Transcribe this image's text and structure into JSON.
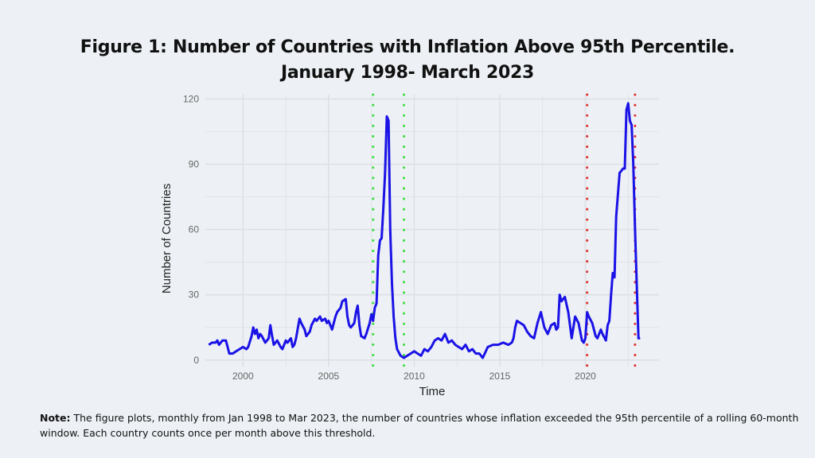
{
  "title_line1": "Figure 1: Number of Countries with Inflation Above 95th Percentile.",
  "title_line2": "January 1998- March 2023",
  "note_label": "Note:",
  "note_text": " The figure plots, monthly from Jan 1998 to Mar 2023, the number of countries whose inflation exceeded the 95th percentile of a rolling 60-month window. Each country counts once per month above this threshold.",
  "colors": {
    "background": "#edf1f5",
    "line": "#1a12e6",
    "gfc_markers": "#3ddc3d",
    "covid_markers": "#e03030",
    "grid": "#dde1e6"
  },
  "chart_data": {
    "type": "line",
    "title": "Figure 1: Number of Countries with Inflation Above 95th Percentile. January 1998- March 2023",
    "xlabel": "Time",
    "ylabel": "Number of Countries",
    "xlim": [
      1997.8,
      2024.3
    ],
    "ylim": [
      -3,
      122
    ],
    "x_ticks": [
      2000,
      2005,
      2010,
      2015,
      2020
    ],
    "x_tick_labels": [
      "2000",
      "2005",
      "2010",
      "2015",
      "2020"
    ],
    "y_ticks": [
      0,
      30,
      60,
      90,
      120
    ],
    "y_tick_labels": [
      "0",
      "30",
      "60",
      "90",
      "120"
    ],
    "grid": true,
    "legend": "none",
    "vlines": [
      {
        "x": 2007.6,
        "color": "green",
        "style": "dotted"
      },
      {
        "x": 2009.4,
        "color": "green",
        "style": "dotted"
      },
      {
        "x": 2020.1,
        "color": "red",
        "style": "dotted"
      },
      {
        "x": 2022.9,
        "color": "red",
        "style": "dotted"
      }
    ],
    "series": [
      {
        "name": "Number of Countries",
        "x": [
          1998.0,
          1998.2,
          1998.4,
          1998.5,
          1998.6,
          1998.8,
          1999.0,
          1999.1,
          1999.2,
          1999.4,
          1999.6,
          1999.8,
          2000.0,
          2000.2,
          2000.3,
          2000.5,
          2000.6,
          2000.7,
          2000.8,
          2000.9,
          2001.0,
          2001.1,
          2001.3,
          2001.5,
          2001.6,
          2001.7,
          2001.8,
          2002.0,
          2002.2,
          2002.3,
          2002.5,
          2002.6,
          2002.8,
          2002.9,
          2003.0,
          2003.1,
          2003.3,
          2003.4,
          2003.6,
          2003.7,
          2003.9,
          2004.0,
          2004.2,
          2004.3,
          2004.5,
          2004.6,
          2004.8,
          2004.9,
          2005.0,
          2005.2,
          2005.4,
          2005.5,
          2005.7,
          2005.8,
          2006.0,
          2006.1,
          2006.2,
          2006.3,
          2006.5,
          2006.6,
          2006.7,
          2006.8,
          2006.9,
          2007.1,
          2007.2,
          2007.4,
          2007.5,
          2007.6,
          2007.7,
          2007.8,
          2007.9,
          2008.0,
          2008.1,
          2008.2,
          2008.3,
          2008.4,
          2008.5,
          2008.6,
          2008.7,
          2008.8,
          2008.9,
          2009.0,
          2009.2,
          2009.4,
          2009.6,
          2009.8,
          2010.0,
          2010.2,
          2010.4,
          2010.6,
          2010.8,
          2011.0,
          2011.2,
          2011.4,
          2011.6,
          2011.8,
          2012.0,
          2012.2,
          2012.4,
          2012.6,
          2012.8,
          2013.0,
          2013.2,
          2013.4,
          2013.6,
          2013.8,
          2014.0,
          2014.3,
          2014.6,
          2014.9,
          2015.2,
          2015.5,
          2015.7,
          2015.8,
          2015.9,
          2016.0,
          2016.2,
          2016.4,
          2016.6,
          2016.8,
          2017.0,
          2017.2,
          2017.4,
          2017.6,
          2017.8,
          2018.0,
          2018.2,
          2018.3,
          2018.4,
          2018.5,
          2018.6,
          2018.8,
          2019.0,
          2019.2,
          2019.4,
          2019.6,
          2019.8,
          2019.9,
          2020.0,
          2020.1,
          2020.2,
          2020.4,
          2020.6,
          2020.7,
          2020.9,
          2021.0,
          2021.2,
          2021.3,
          2021.4,
          2021.5,
          2021.6,
          2021.7,
          2021.8,
          2022.0,
          2022.1,
          2022.2,
          2022.3,
          2022.4,
          2022.5,
          2022.6,
          2022.7,
          2022.8,
          2022.9,
          2023.0,
          2023.1,
          2023.2
        ],
        "y": [
          7,
          8,
          8,
          9,
          7,
          9,
          9,
          6,
          3,
          3,
          4,
          5,
          6,
          5,
          6,
          11,
          15,
          12,
          14,
          10,
          12,
          11,
          8,
          10,
          16,
          11,
          7,
          9,
          6,
          5,
          9,
          8,
          10,
          6,
          7,
          10,
          19,
          17,
          14,
          11,
          13,
          16,
          19,
          18,
          20,
          18,
          19,
          17,
          18,
          14,
          20,
          22,
          24,
          27,
          28,
          20,
          16,
          15,
          17,
          22,
          25,
          16,
          11,
          10,
          12,
          17,
          21,
          18,
          24,
          26,
          48,
          55,
          56,
          70,
          86,
          112,
          110,
          60,
          35,
          20,
          10,
          5,
          2,
          1,
          2,
          3,
          4,
          3,
          2,
          5,
          4,
          6,
          9,
          10,
          9,
          12,
          8,
          9,
          7,
          6,
          5,
          7,
          4,
          5,
          3,
          3,
          1,
          6,
          7,
          7,
          8,
          7,
          8,
          10,
          15,
          18,
          17,
          16,
          13,
          11,
          10,
          17,
          22,
          15,
          12,
          16,
          17,
          14,
          15,
          30,
          27,
          29,
          22,
          10,
          20,
          17,
          9,
          8,
          10,
          22,
          20,
          17,
          11,
          10,
          14,
          12,
          9,
          16,
          18,
          30,
          40,
          38,
          66,
          86,
          87,
          88,
          88,
          115,
          118,
          110,
          108,
          90,
          60,
          35,
          10,
          10
        ]
      }
    ]
  }
}
